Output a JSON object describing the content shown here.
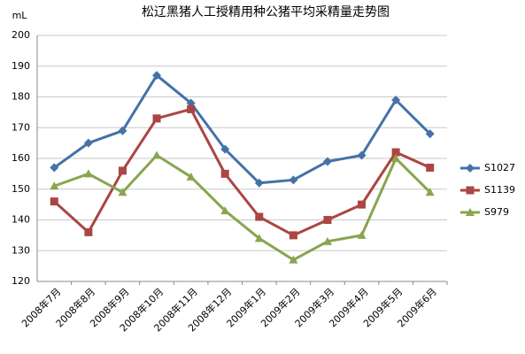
{
  "chart_data": {
    "type": "line",
    "title": "松辽黑猪人工授精用种公猪平均采精量走势图",
    "y_label": "mL",
    "categories": [
      "2008年7月",
      "2008年8月",
      "2008年9月",
      "2008年10月",
      "2008年11月",
      "2008年12月",
      "2009年1月",
      "2009年2月",
      "2009年3月",
      "2009年4月",
      "2009年5月",
      "2009年6月"
    ],
    "series": [
      {
        "name": "S1027",
        "color": "#4572a7",
        "marker": "diamond",
        "values": [
          157,
          165,
          169,
          187,
          178,
          163,
          152,
          153,
          159,
          161,
          179,
          168
        ]
      },
      {
        "name": "S1139",
        "color": "#aa4643",
        "marker": "square",
        "values": [
          146,
          136,
          156,
          173,
          176,
          155,
          141,
          135,
          140,
          145,
          162,
          157
        ]
      },
      {
        "name": "S979",
        "color": "#89a54e",
        "marker": "triangle",
        "values": [
          151,
          155,
          149,
          161,
          154,
          143,
          134,
          127,
          133,
          135,
          160,
          149
        ]
      }
    ],
    "ylim": [
      120,
      200
    ],
    "yticks": [
      120,
      130,
      140,
      150,
      160,
      170,
      180,
      190,
      200
    ],
    "grid": true,
    "legend": "right"
  }
}
